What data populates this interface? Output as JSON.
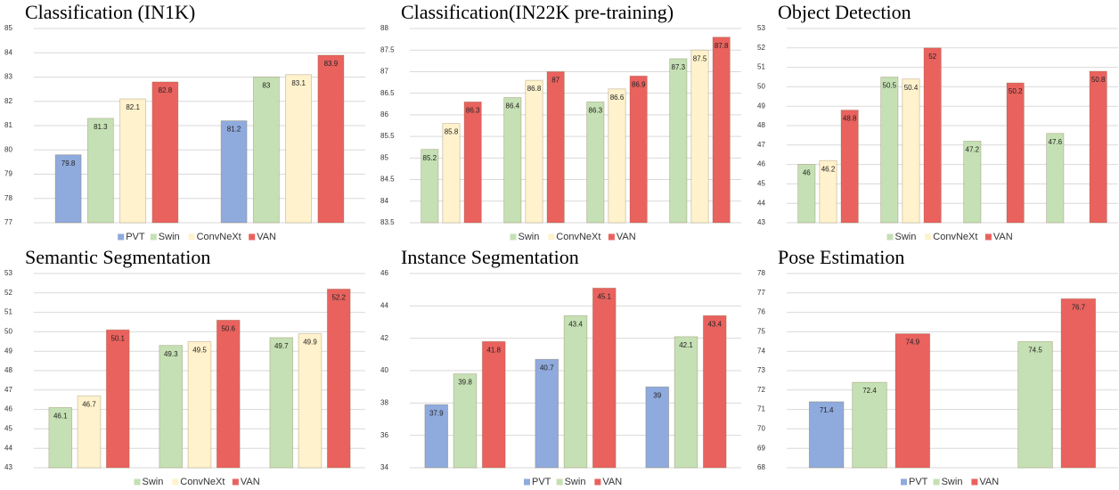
{
  "chart_data": [
    {
      "type": "bar",
      "title": "Classification (IN1K)",
      "categories": [
        null,
        null
      ],
      "ylim": [
        77,
        85
      ],
      "yticks": [
        77,
        78,
        79,
        80,
        81,
        82,
        83,
        84,
        85
      ],
      "grid": true,
      "legend": "bottom",
      "series": [
        {
          "name": "PVT",
          "color": "#8faadc",
          "values": [
            79.8,
            81.2
          ]
        },
        {
          "name": "Swin",
          "color": "#c5e0b4",
          "values": [
            81.3,
            83
          ]
        },
        {
          "name": "ConvNeXt",
          "color": "#fff2cc",
          "values": [
            82.1,
            83.1
          ]
        },
        {
          "name": "VAN",
          "color": "#e9625e",
          "values": [
            82.8,
            83.9
          ]
        }
      ]
    },
    {
      "type": "bar",
      "title": "Classification(IN22K pre-training)",
      "categories": [
        null,
        null,
        null,
        null
      ],
      "ylim": [
        83.5,
        88
      ],
      "yticks": [
        83.5,
        84,
        84.5,
        85,
        85.5,
        86,
        86.5,
        87,
        87.5,
        88
      ],
      "grid": true,
      "legend": "bottom",
      "series": [
        {
          "name": "Swin",
          "color": "#c5e0b4",
          "values": [
            85.2,
            86.4,
            86.3,
            87.3
          ]
        },
        {
          "name": "ConvNeXt",
          "color": "#fff2cc",
          "values": [
            85.8,
            86.8,
            86.6,
            87.5
          ]
        },
        {
          "name": "VAN",
          "color": "#e9625e",
          "values": [
            86.3,
            87,
            86.9,
            87.8
          ]
        }
      ]
    },
    {
      "type": "bar",
      "title": "Object Detection",
      "categories": [
        null,
        null,
        null,
        null
      ],
      "ylim": [
        43,
        53
      ],
      "yticks": [
        43,
        44,
        45,
        46,
        47,
        48,
        49,
        50,
        51,
        52,
        53
      ],
      "grid": true,
      "legend": "bottom",
      "series": [
        {
          "name": "Swin",
          "color": "#c5e0b4",
          "values": [
            46,
            50.5,
            47.2,
            47.6
          ]
        },
        {
          "name": "ConvNeXt",
          "color": "#fff2cc",
          "values": [
            46.2,
            50.4,
            null,
            null
          ]
        },
        {
          "name": "VAN",
          "color": "#e9625e",
          "values": [
            48.8,
            52,
            50.2,
            50.8
          ]
        }
      ]
    },
    {
      "type": "bar",
      "title": "Semantic Segmentation",
      "categories": [
        null,
        null,
        null
      ],
      "ylim": [
        43,
        53
      ],
      "yticks": [
        43,
        44,
        45,
        46,
        47,
        48,
        49,
        50,
        51,
        52,
        53
      ],
      "grid": true,
      "legend": "bottom",
      "series": [
        {
          "name": "Swin",
          "color": "#c5e0b4",
          "values": [
            46.1,
            49.3,
            49.7
          ]
        },
        {
          "name": "ConvNeXt",
          "color": "#fff2cc",
          "values": [
            46.7,
            49.5,
            49.9
          ]
        },
        {
          "name": "VAN",
          "color": "#e9625e",
          "values": [
            50.1,
            50.6,
            52.2
          ]
        }
      ]
    },
    {
      "type": "bar",
      "title": "Instance Segmentation",
      "categories": [
        null,
        null,
        null
      ],
      "ylim": [
        34,
        46
      ],
      "yticks": [
        34,
        36,
        38,
        40,
        42,
        44,
        46
      ],
      "grid": true,
      "legend": "bottom",
      "series": [
        {
          "name": "PVT",
          "color": "#8faadc",
          "values": [
            37.9,
            40.7,
            39
          ]
        },
        {
          "name": "Swin",
          "color": "#c5e0b4",
          "values": [
            39.8,
            43.4,
            42.1
          ]
        },
        {
          "name": "VAN",
          "color": "#e9625e",
          "values": [
            41.8,
            45.1,
            43.4
          ]
        }
      ]
    },
    {
      "type": "bar",
      "title": "Pose Estimation",
      "categories": [
        null,
        null
      ],
      "ylim": [
        68,
        78
      ],
      "yticks": [
        68,
        69,
        70,
        71,
        72,
        73,
        74,
        75,
        76,
        77,
        78
      ],
      "grid": true,
      "legend": "bottom",
      "series": [
        {
          "name": "PVT",
          "color": "#8faadc",
          "values": [
            71.4,
            null
          ]
        },
        {
          "name": "Swin",
          "color": "#c5e0b4",
          "values": [
            72.4,
            74.5
          ]
        },
        {
          "name": "VAN",
          "color": "#e9625e",
          "values": [
            74.9,
            76.7
          ]
        }
      ]
    }
  ]
}
